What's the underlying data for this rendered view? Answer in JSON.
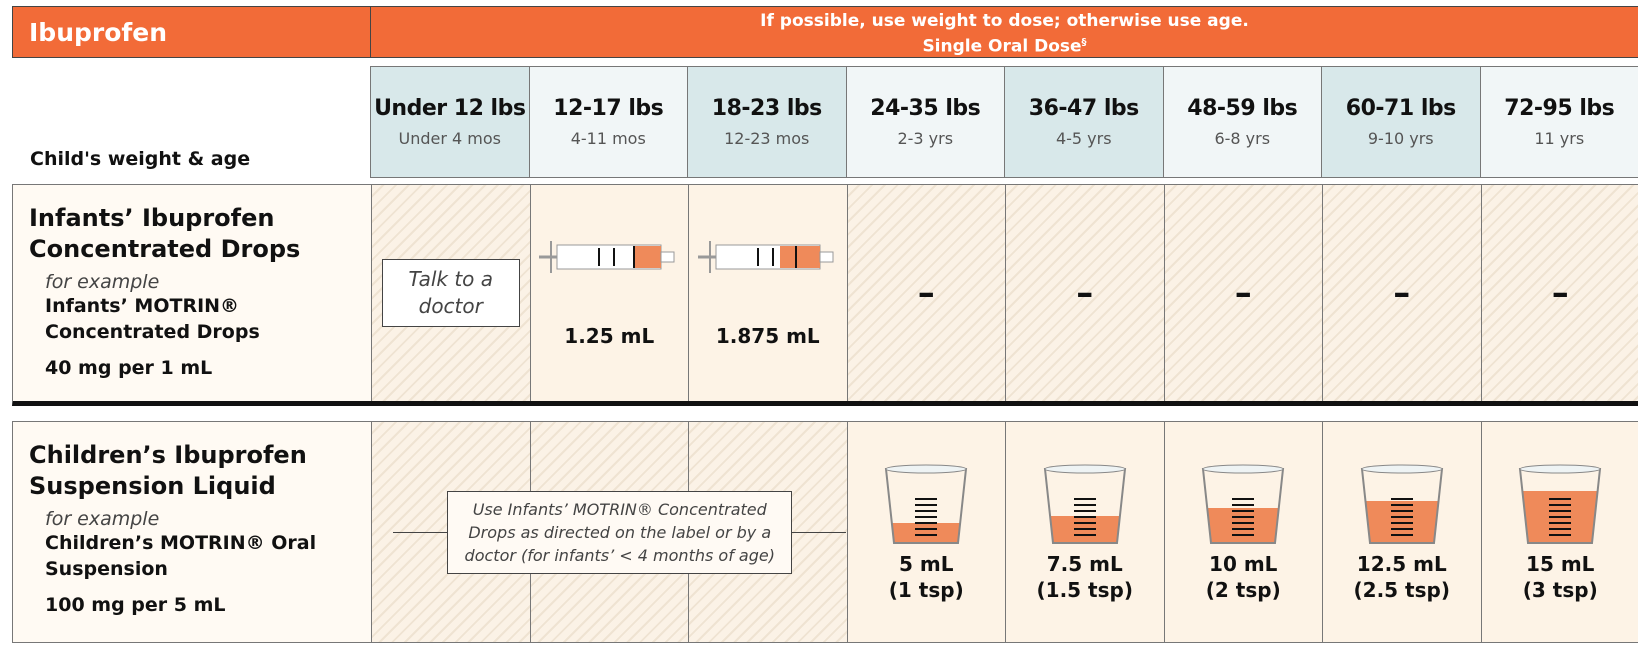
{
  "header": {
    "title": "Ibuprofen",
    "note": "If possible, use weight to dose; otherwise use age.",
    "subnote": "Single Oral Dose",
    "footnote_mark": "§"
  },
  "columns": {
    "label": "Child's weight & age",
    "items": [
      {
        "weight": "Under 12 lbs",
        "age": "Under 4 mos"
      },
      {
        "weight": "12-17 lbs",
        "age": "4-11 mos"
      },
      {
        "weight": "18-23 lbs",
        "age": "12-23 mos"
      },
      {
        "weight": "24-35 lbs",
        "age": "2-3 yrs"
      },
      {
        "weight": "36-47 lbs",
        "age": "4-5 yrs"
      },
      {
        "weight": "48-59 lbs",
        "age": "6-8 yrs"
      },
      {
        "weight": "60-71 lbs",
        "age": "9-10 yrs"
      },
      {
        "weight": "72-95 lbs",
        "age": "11 yrs"
      }
    ]
  },
  "rows": [
    {
      "name": "Infants’ Ibuprofen Concentrated Drops",
      "example_label": "for example",
      "example": "Infants’ MOTRIN® Concentrated Drops",
      "strength": "40 mg per 1 mL",
      "note": "Talk to a doctor",
      "doses": [
        "1.25 mL",
        "1.875 mL",
        "–",
        "–",
        "–",
        "–",
        "–"
      ]
    },
    {
      "name": "Children’s Ibuprofen Suspension Liquid",
      "example_label": "for example",
      "example": "Children’s MOTRIN® Oral Suspension",
      "strength": "100 mg per 5 mL",
      "note": "Use Infants’ MOTRIN® Concentrated Drops as directed on the label or by a doctor (for infants’ < 4 months of age)",
      "doses": [
        {
          "amount": "5 mL",
          "tsp": "(1 tsp)"
        },
        {
          "amount": "7.5 mL",
          "tsp": "(1.5 tsp)"
        },
        {
          "amount": "10 mL",
          "tsp": "(2 tsp)"
        },
        {
          "amount": "12.5 mL",
          "tsp": "(2.5 tsp)"
        },
        {
          "amount": "15 mL",
          "tsp": "(3 tsp)"
        }
      ]
    }
  ]
}
